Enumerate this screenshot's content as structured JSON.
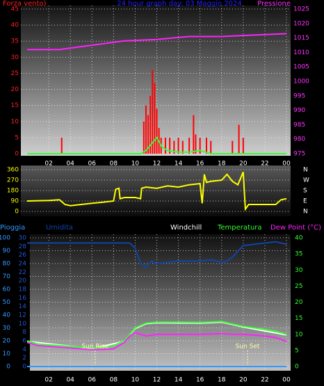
{
  "chart_data": [
    {
      "type": "combo",
      "title": "24 hour graph day: 03 Maggio 2024",
      "ylabel": "Forza vento)",
      "y2label": "Pressione",
      "xlim": [
        0,
        24
      ],
      "xticks": [
        {
          "value": 2,
          "label": "02"
        },
        {
          "value": 4,
          "label": "04"
        },
        {
          "value": 6,
          "label": "06"
        },
        {
          "value": 8,
          "label": "08"
        },
        10,
        12,
        14,
        16,
        18,
        20,
        22,
        {
          "value": 24,
          "label": "00"
        }
      ],
      "ylim": [
        0,
        45
      ],
      "yticks": [
        0,
        5,
        10,
        15,
        20,
        25,
        30,
        35,
        40,
        45
      ],
      "ycolor": "#ff2020",
      "y2lim": [
        975,
        1025
      ],
      "y2ticks": [
        975,
        980,
        985,
        990,
        995,
        1000,
        1005,
        1010,
        1015,
        1020,
        1025
      ],
      "y2color": "#ff33ff",
      "grid": true,
      "series": [
        {
          "kind": "bar",
          "color": "#ff0000",
          "x": [
            3.2,
            10.8,
            11,
            11.2,
            11.4,
            11.6,
            11.8,
            12,
            12.2,
            12.4,
            12.8,
            13.2,
            13.6,
            14,
            14.4,
            15,
            15.4,
            15.6,
            16,
            16.6,
            17,
            19,
            19.6,
            20
          ],
          "values": [
            5,
            10,
            15,
            12,
            18,
            26,
            22,
            14,
            8,
            5,
            5,
            5,
            4,
            5,
            4,
            5,
            12,
            6,
            5,
            5,
            4,
            4,
            9,
            5
          ]
        },
        {
          "kind": "line",
          "color": "#33ff33",
          "x": [
            0,
            10.5,
            11,
            11.5,
            12,
            12.5,
            13,
            14,
            15,
            16,
            16.5,
            17,
            24
          ],
          "values": [
            0,
            0,
            1,
            3,
            5,
            2,
            1,
            0.5,
            0.5,
            1,
            0.5,
            0,
            0
          ]
        },
        {
          "kind": "line",
          "color": "#ff22ff",
          "axis": "y2",
          "x": [
            0,
            3,
            6,
            9,
            12,
            15,
            18,
            21,
            24
          ],
          "values": [
            1011,
            1011,
            1012.5,
            1014,
            1014.5,
            1015.5,
            1015.5,
            1016,
            1016.5
          ]
        }
      ]
    },
    {
      "type": "line",
      "xlim": [
        0,
        24
      ],
      "ylim": [
        0,
        360
      ],
      "yticks": [
        0,
        90,
        180,
        270,
        360
      ],
      "ycolor": "#ffff00",
      "y2lim": [
        0,
        360
      ],
      "y2ticks": [
        {
          "value": 0,
          "label": "N"
        },
        {
          "value": 90,
          "label": "E"
        },
        {
          "value": 180,
          "label": "S"
        },
        {
          "value": 270,
          "label": "W"
        },
        {
          "value": 360,
          "label": "N"
        }
      ],
      "y2color": "#ffffff",
      "grid": true,
      "series": [
        {
          "kind": "line",
          "color": "#ffff00",
          "x": [
            0,
            2,
            3,
            3.5,
            4,
            6,
            7,
            8,
            8.2,
            8.5,
            8.6,
            9,
            10,
            10.5,
            10.6,
            11,
            12,
            13,
            14,
            15,
            16,
            16.2,
            16.4,
            16.6,
            17,
            18,
            18.5,
            19,
            19.5,
            20,
            20.2,
            20.5,
            22,
            23,
            23.5,
            24
          ],
          "values": [
            90,
            95,
            100,
            60,
            50,
            70,
            80,
            90,
            190,
            200,
            110,
            120,
            120,
            110,
            200,
            210,
            200,
            220,
            210,
            230,
            240,
            70,
            320,
            250,
            260,
            270,
            320,
            260,
            230,
            340,
            20,
            60,
            60,
            60,
            100,
            110
          ]
        }
      ]
    },
    {
      "type": "line",
      "xlim": [
        0,
        24
      ],
      "xticks": [
        {
          "value": 2,
          "label": "02"
        },
        {
          "value": 4,
          "label": "04"
        },
        {
          "value": 6,
          "label": "06"
        },
        {
          "value": 8,
          "label": "08"
        },
        10,
        12,
        14,
        16,
        18,
        20,
        22,
        {
          "value": 24,
          "label": "00"
        }
      ],
      "ylim": [
        0,
        100
      ],
      "yticks": [
        0,
        10,
        20,
        30,
        40,
        50,
        60,
        70,
        80,
        90,
        100
      ],
      "ycolor": "#3399ff",
      "y3lim": [
        0,
        30
      ],
      "y3ticks": [
        0,
        2,
        4,
        6,
        8,
        10,
        12,
        14,
        16,
        18,
        20,
        22,
        24,
        26,
        28,
        30
      ],
      "y3color": "#2255cc",
      "y2lim": [
        0,
        40
      ],
      "y2ticks": [
        0,
        5,
        10,
        15,
        20,
        25,
        30,
        35,
        40
      ],
      "y2color": "#33ff33",
      "grid": true,
      "annotations": [
        {
          "text": "Sun Rise",
          "x": 6.3
        },
        {
          "text": "Sun Set",
          "x": 20.4
        }
      ],
      "series": [
        {
          "name": "Pioggia",
          "color": "#3399ff",
          "axis": "y3",
          "x": [
            0,
            24
          ],
          "values": [
            0,
            0
          ]
        },
        {
          "name": "Umidita",
          "color": "#1144aa",
          "x": [
            0,
            2,
            4,
            6,
            8,
            9.5,
            10,
            10.5,
            11,
            11.5,
            12,
            14,
            16,
            17,
            18,
            18.5,
            19,
            20,
            21,
            22,
            23,
            24
          ],
          "values": [
            96,
            96,
            96,
            96,
            96,
            96,
            92,
            80,
            77,
            82,
            80,
            82,
            82,
            83,
            81,
            82,
            85,
            94,
            95,
            96,
            97,
            95
          ]
        },
        {
          "name": "Windchill",
          "color": "#ffffff",
          "axis": "y2",
          "x": [
            0,
            6,
            9,
            10,
            11,
            12,
            16,
            18,
            20,
            24
          ],
          "values": [
            7.8,
            5.6,
            7.8,
            11.8,
            13.3,
            13.6,
            13.5,
            13.8,
            12.3,
            9.8
          ]
        },
        {
          "name": "Temperatura",
          "color": "#33ff33",
          "axis": "y2",
          "x": [
            0,
            1,
            3,
            5,
            6,
            7,
            8,
            9,
            9.5,
            10,
            11,
            12,
            14,
            16,
            18,
            19,
            20,
            22,
            23,
            24
          ],
          "values": [
            8,
            7,
            6.5,
            6,
            5.8,
            6,
            6.5,
            8,
            10,
            12,
            13.5,
            13.8,
            13.8,
            13.7,
            14,
            13.2,
            12.5,
            11.5,
            11,
            10
          ]
        },
        {
          "name": "Dew Point (°C)",
          "color": "#ff22ff",
          "axis": "y2",
          "x": [
            0,
            1,
            3,
            5,
            6,
            7,
            8,
            9,
            9.5,
            10,
            11,
            12,
            14,
            16,
            18,
            19,
            20,
            22,
            23,
            24
          ],
          "values": [
            7.5,
            6.5,
            6,
            5.5,
            5.2,
            5.3,
            5.5,
            7.5,
            9.5,
            10.5,
            9.5,
            10,
            10,
            10,
            10.2,
            10,
            10,
            9.5,
            9,
            7.8
          ]
        }
      ]
    }
  ]
}
